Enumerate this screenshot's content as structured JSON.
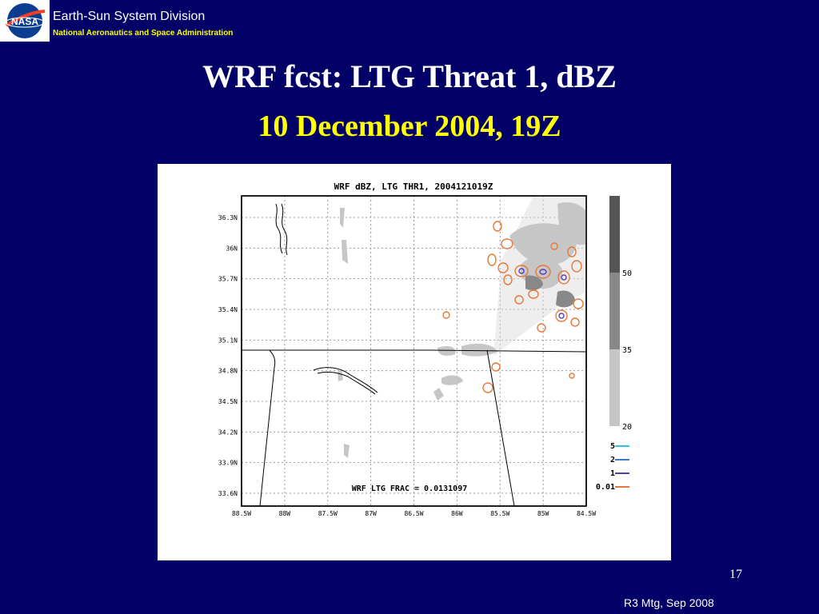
{
  "header": {
    "logo_text": "NASA",
    "org_name": "Earth-Sun System Division",
    "org_sub": "National Aeronautics and Space Administration"
  },
  "slide": {
    "title": "WRF fcst: LTG Threat 1, dBZ",
    "subtitle": "10 December 2004, 19Z",
    "number": "17",
    "footer": "R3 Mtg, Sep 2008"
  },
  "map": {
    "title": "WRF dBZ, LTG THR1, 2004121019Z",
    "frac_label": "WRF LTG FRAC = 0.0131097",
    "lat_ticks": [
      "36.3N",
      "36N",
      "35.7N",
      "35.4N",
      "35.1N",
      "34.8N",
      "34.5N",
      "34.2N",
      "33.9N",
      "33.6N"
    ],
    "lon_ticks": [
      "88.5W",
      "88W",
      "87.5W",
      "87W",
      "86.5W",
      "86W",
      "85.5W",
      "85W",
      "84.5W"
    ],
    "colorbar": {
      "labels": [
        "50",
        "35",
        "20"
      ],
      "colors": [
        "#555555",
        "#888888",
        "#c6c6c6"
      ]
    },
    "legend": [
      {
        "label": "5",
        "color": "#33c2e0"
      },
      {
        "label": "2",
        "color": "#3c79c8"
      },
      {
        "label": "1",
        "color": "#5a3db8"
      },
      {
        "label": "0.01",
        "color": "#e87838"
      }
    ],
    "colors": {
      "map_lines": "#000000",
      "grid": "#999999",
      "shade_light": "#c6c6c6",
      "shade_mid": "#888888",
      "contour_low": "#e87838"
    }
  }
}
